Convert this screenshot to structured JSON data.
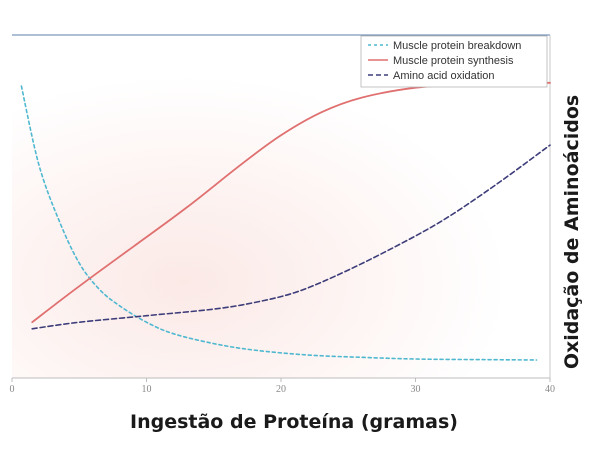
{
  "chart_data": {
    "type": "line",
    "title": "",
    "xlabel": "Ingestão de Proteína (gramas)",
    "ylabel": "Oxidação de Aminoácidos",
    "xlim": [
      0,
      40
    ],
    "ylim": [
      0,
      100
    ],
    "xticks": [
      0,
      10,
      20,
      30,
      40
    ],
    "grid": false,
    "legend_position": "top-right",
    "series": [
      {
        "name": "Muscle protein breakdown",
        "color": "#4fb8d0",
        "style": "dotted",
        "x": [
          0.7,
          2,
          3.5,
          5,
          6.5,
          8,
          10,
          12,
          15,
          18,
          22,
          26,
          30,
          35,
          39
        ],
        "y": [
          89,
          65,
          48,
          35,
          27,
          22,
          17,
          13.5,
          10.5,
          8.5,
          7,
          6.3,
          5.8,
          5.6,
          5.5
        ]
      },
      {
        "name": "Muscle protein synthesis",
        "color": "#e07070",
        "style": "solid",
        "x": [
          1.5,
          5,
          9,
          13,
          17,
          20,
          23,
          26,
          30,
          34,
          40
        ],
        "y": [
          17,
          28,
          40,
          52,
          65,
          74,
          81,
          85.5,
          88.5,
          89.5,
          90
        ]
      },
      {
        "name": "Amino acid oxidation",
        "color": "#3d3d7a",
        "style": "dashed",
        "x": [
          1.5,
          5,
          10,
          15,
          18,
          21,
          24,
          28,
          32,
          36,
          40
        ],
        "y": [
          15,
          17,
          19,
          21,
          23,
          26,
          31,
          39,
          48,
          59,
          71
        ]
      }
    ]
  }
}
